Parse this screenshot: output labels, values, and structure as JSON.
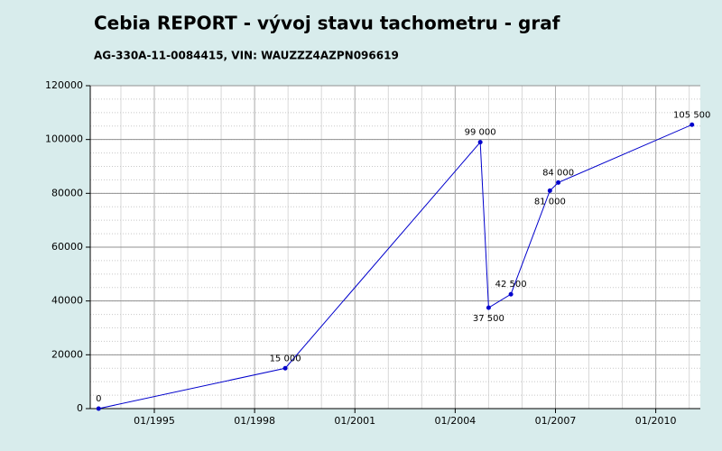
{
  "chart_data": {
    "type": "line",
    "title": "Cebia REPORT - vývoj stavu tachometru - graf",
    "subtitle": "AG-330A-11-0084415, VIN: WAUZZZ4AZPN096619",
    "x": [
      "05/1993",
      "12/1998",
      "10/2004",
      "01/2005",
      "09/2005",
      "11/2006",
      "02/2007",
      "02/2011"
    ],
    "series": [
      {
        "color": "#0000cc",
        "values": [
          0,
          15000,
          99000,
          37500,
          42500,
          81000,
          84000,
          105500
        ],
        "value_labels": [
          "0",
          "15 000",
          "99 000",
          "37 500",
          "42 500",
          "81 000",
          "84 000",
          "105 500"
        ]
      }
    ],
    "xlim": [
      "02/1993",
      "05/2011"
    ],
    "xticks": [
      "01/1995",
      "01/1998",
      "01/2001",
      "01/2004",
      "01/2007",
      "01/2010"
    ],
    "ylim": [
      0,
      120000
    ],
    "yticks": [
      0,
      20000,
      40000,
      60000,
      80000,
      100000,
      120000
    ],
    "grid": true
  }
}
